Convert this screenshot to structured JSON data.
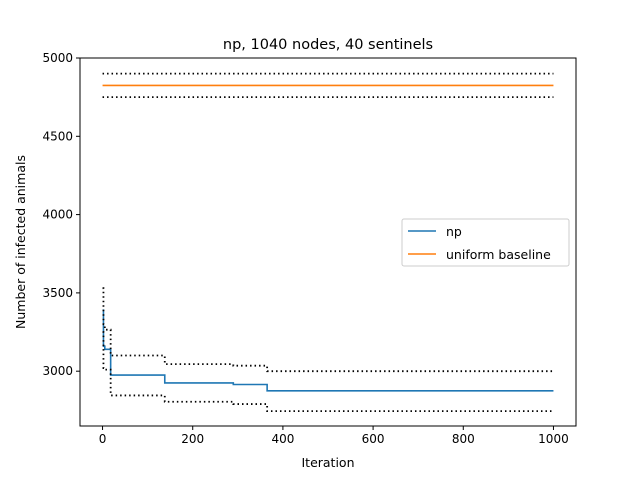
{
  "chart_data": {
    "type": "line",
    "title": "np, 1040 nodes, 40 sentinels",
    "xlabel": "Iteration",
    "ylabel": "Number of infected animals",
    "xlim": [
      -50,
      1050
    ],
    "ylim": [
      2650,
      5000
    ],
    "xticks": [
      0,
      200,
      400,
      600,
      800,
      1000
    ],
    "yticks": [
      3000,
      3500,
      4000,
      4500,
      5000
    ],
    "legend_position": "center-right",
    "grid": false,
    "series": [
      {
        "name": "np",
        "color": "#1f77b4",
        "style": "solid",
        "x": [
          0,
          2,
          2,
          5,
          5,
          18,
          18,
          138,
          138,
          290,
          290,
          365,
          365,
          1000
        ],
        "y": [
          3390,
          3390,
          3160,
          3160,
          3140,
          3140,
          2975,
          2975,
          2925,
          2925,
          2915,
          2915,
          2875,
          2875
        ]
      },
      {
        "name": "uniform baseline",
        "color": "#ff7f0e",
        "style": "solid",
        "x": [
          0,
          1000
        ],
        "y": [
          4825,
          4825
        ]
      },
      {
        "color": "#000000",
        "style": "dotted",
        "x": [
          0,
          2,
          2,
          5,
          5,
          18,
          18,
          138,
          138,
          290,
          290,
          365,
          365,
          1000
        ],
        "y": [
          3530,
          3530,
          3300,
          3300,
          3265,
          3265,
          3100,
          3100,
          3045,
          3045,
          3035,
          3035,
          3000,
          3000
        ]
      },
      {
        "color": "#000000",
        "style": "dotted",
        "x": [
          0,
          2,
          2,
          5,
          5,
          18,
          18,
          138,
          138,
          290,
          290,
          365,
          365,
          1000
        ],
        "y": [
          3250,
          3250,
          3020,
          3020,
          3010,
          3010,
          2845,
          2845,
          2805,
          2805,
          2790,
          2790,
          2745,
          2745
        ]
      },
      {
        "color": "#000000",
        "style": "dotted",
        "x": [
          0,
          1000
        ],
        "y": [
          4900,
          4900
        ]
      },
      {
        "color": "#000000",
        "style": "dotted",
        "x": [
          0,
          1000
        ],
        "y": [
          4750,
          4750
        ]
      }
    ]
  }
}
